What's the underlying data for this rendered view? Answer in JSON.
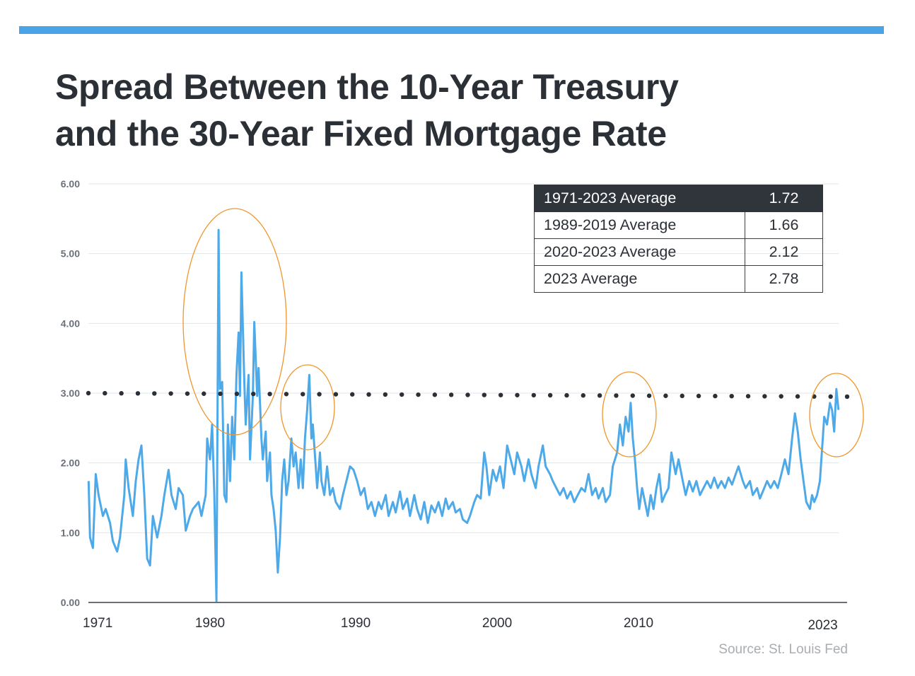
{
  "colors": {
    "accent_bar": "#4aa3e6",
    "series": "#4ea9e8",
    "reference_line": "#2b2f36",
    "annotation_circle": "#f0962e",
    "header_row": "#30353c"
  },
  "title_lines": [
    "Spread Between the 10-Year Treasury",
    "and the 30-Year Fixed Mortgage Rate"
  ],
  "source": "Source: St. Louis Fed",
  "summary_table": [
    {
      "label": "1971-2023 Average",
      "value": "1.72"
    },
    {
      "label": "1989-2019 Average",
      "value": "1.66"
    },
    {
      "label": "2020-2023 Average",
      "value": "2.12"
    },
    {
      "label": "2023 Average",
      "value": "2.78"
    }
  ],
  "chart_data": {
    "type": "line",
    "title": "Spread Between the 10-Year Treasury and the 30-Year Fixed Mortgage Rate",
    "xlabel": "",
    "ylabel": "",
    "xlim": [
      1970.9,
      2024.6
    ],
    "ylim": [
      0,
      6
    ],
    "y_ticks": [
      "0.00",
      "1.00",
      "2.00",
      "3.00",
      "4.00",
      "5.00",
      "6.00"
    ],
    "x_ticks": [
      {
        "label": "1971",
        "year": 1971
      },
      {
        "label": "1980",
        "year": 1980
      },
      {
        "label": "1990",
        "year": 1990.2
      },
      {
        "label": "2000",
        "year": 2000.1
      },
      {
        "label": "2010",
        "year": 2010
      },
      {
        "label": "2023",
        "year": 2022.9
      }
    ],
    "grid": true,
    "reference_line": {
      "start_value": 3.0,
      "end_value": 2.95,
      "style": "dotted"
    },
    "series": [
      {
        "name": "Spread",
        "points": [
          [
            1971.5,
            1.74
          ],
          [
            1971.6,
            0.93
          ],
          [
            1971.8,
            0.78
          ],
          [
            1972.0,
            1.84
          ],
          [
            1972.2,
            1.54
          ],
          [
            1972.5,
            1.24
          ],
          [
            1972.7,
            1.34
          ],
          [
            1973.0,
            1.14
          ],
          [
            1973.2,
            0.88
          ],
          [
            1973.5,
            0.73
          ],
          [
            1973.7,
            0.93
          ],
          [
            1974.0,
            1.54
          ],
          [
            1974.1,
            2.05
          ],
          [
            1974.3,
            1.64
          ],
          [
            1974.6,
            1.24
          ],
          [
            1974.8,
            1.74
          ],
          [
            1975.0,
            2.05
          ],
          [
            1975.2,
            2.25
          ],
          [
            1975.4,
            1.54
          ],
          [
            1975.6,
            0.63
          ],
          [
            1975.8,
            0.53
          ],
          [
            1976.0,
            1.24
          ],
          [
            1976.3,
            0.93
          ],
          [
            1976.6,
            1.24
          ],
          [
            1976.8,
            1.54
          ],
          [
            1977.1,
            1.9
          ],
          [
            1977.3,
            1.54
          ],
          [
            1977.6,
            1.34
          ],
          [
            1977.8,
            1.64
          ],
          [
            1978.1,
            1.54
          ],
          [
            1978.3,
            1.03
          ],
          [
            1978.6,
            1.24
          ],
          [
            1978.8,
            1.34
          ],
          [
            1979.2,
            1.44
          ],
          [
            1979.4,
            1.24
          ],
          [
            1979.7,
            1.54
          ],
          [
            1979.8,
            2.35
          ],
          [
            1980.0,
            2.05
          ],
          [
            1980.15,
            2.55
          ],
          [
            1980.3,
            1.54
          ],
          [
            1980.45,
            0.02
          ],
          [
            1980.6,
            5.34
          ],
          [
            1980.7,
            3.06
          ],
          [
            1980.85,
            3.16
          ],
          [
            1981.0,
            1.54
          ],
          [
            1981.15,
            1.44
          ],
          [
            1981.25,
            2.55
          ],
          [
            1981.4,
            1.74
          ],
          [
            1981.55,
            2.66
          ],
          [
            1981.7,
            2.05
          ],
          [
            1981.85,
            3.26
          ],
          [
            1982.0,
            3.87
          ],
          [
            1982.1,
            2.96
          ],
          [
            1982.2,
            4.73
          ],
          [
            1982.4,
            3.16
          ],
          [
            1982.5,
            2.55
          ],
          [
            1982.7,
            3.26
          ],
          [
            1982.8,
            2.05
          ],
          [
            1983.0,
            2.96
          ],
          [
            1983.1,
            4.02
          ],
          [
            1983.3,
            2.96
          ],
          [
            1983.4,
            3.36
          ],
          [
            1983.6,
            2.35
          ],
          [
            1983.7,
            2.05
          ],
          [
            1983.9,
            2.45
          ],
          [
            1984.0,
            1.74
          ],
          [
            1984.2,
            2.15
          ],
          [
            1984.3,
            1.54
          ],
          [
            1984.45,
            1.34
          ],
          [
            1984.6,
            1.03
          ],
          [
            1984.75,
            0.43
          ],
          [
            1984.9,
            0.93
          ],
          [
            1985.05,
            1.74
          ],
          [
            1985.2,
            2.05
          ],
          [
            1985.35,
            1.54
          ],
          [
            1985.5,
            1.74
          ],
          [
            1985.7,
            2.35
          ],
          [
            1985.85,
            1.95
          ],
          [
            1986.0,
            2.15
          ],
          [
            1986.2,
            1.64
          ],
          [
            1986.35,
            2.05
          ],
          [
            1986.5,
            1.64
          ],
          [
            1986.65,
            2.35
          ],
          [
            1986.8,
            2.76
          ],
          [
            1986.95,
            3.26
          ],
          [
            1987.1,
            2.35
          ],
          [
            1987.2,
            2.55
          ],
          [
            1987.4,
            1.95
          ],
          [
            1987.5,
            1.64
          ],
          [
            1987.7,
            2.15
          ],
          [
            1987.8,
            1.74
          ],
          [
            1988.0,
            1.54
          ],
          [
            1988.2,
            1.95
          ],
          [
            1988.4,
            1.54
          ],
          [
            1988.6,
            1.64
          ],
          [
            1988.8,
            1.44
          ],
          [
            1989.1,
            1.34
          ],
          [
            1989.3,
            1.54
          ],
          [
            1989.55,
            1.74
          ],
          [
            1989.8,
            1.95
          ],
          [
            1990.05,
            1.9
          ],
          [
            1990.3,
            1.74
          ],
          [
            1990.55,
            1.54
          ],
          [
            1990.8,
            1.64
          ],
          [
            1991.05,
            1.34
          ],
          [
            1991.3,
            1.44
          ],
          [
            1991.55,
            1.24
          ],
          [
            1991.8,
            1.44
          ],
          [
            1992.0,
            1.34
          ],
          [
            1992.3,
            1.54
          ],
          [
            1992.5,
            1.24
          ],
          [
            1992.8,
            1.44
          ],
          [
            1993.0,
            1.29
          ],
          [
            1993.3,
            1.59
          ],
          [
            1993.5,
            1.34
          ],
          [
            1993.8,
            1.49
          ],
          [
            1994.0,
            1.24
          ],
          [
            1994.3,
            1.54
          ],
          [
            1994.5,
            1.34
          ],
          [
            1994.75,
            1.19
          ],
          [
            1995.0,
            1.44
          ],
          [
            1995.25,
            1.14
          ],
          [
            1995.5,
            1.39
          ],
          [
            1995.75,
            1.29
          ],
          [
            1996.0,
            1.44
          ],
          [
            1996.25,
            1.24
          ],
          [
            1996.5,
            1.49
          ],
          [
            1996.7,
            1.34
          ],
          [
            1997.0,
            1.44
          ],
          [
            1997.2,
            1.29
          ],
          [
            1997.5,
            1.34
          ],
          [
            1997.7,
            1.19
          ],
          [
            1998.0,
            1.14
          ],
          [
            1998.2,
            1.24
          ],
          [
            1998.5,
            1.44
          ],
          [
            1998.7,
            1.54
          ],
          [
            1998.95,
            1.49
          ],
          [
            1999.2,
            2.15
          ],
          [
            1999.35,
            1.95
          ],
          [
            1999.55,
            1.54
          ],
          [
            1999.8,
            1.9
          ],
          [
            2000.05,
            1.74
          ],
          [
            2000.3,
            1.95
          ],
          [
            2000.55,
            1.64
          ],
          [
            2000.8,
            2.25
          ],
          [
            2001.05,
            2.05
          ],
          [
            2001.3,
            1.84
          ],
          [
            2001.5,
            2.15
          ],
          [
            2001.8,
            1.95
          ],
          [
            2002.0,
            1.74
          ],
          [
            2002.3,
            2.05
          ],
          [
            2002.5,
            1.84
          ],
          [
            2002.8,
            1.64
          ],
          [
            2003.0,
            1.95
          ],
          [
            2003.3,
            2.25
          ],
          [
            2003.5,
            1.95
          ],
          [
            2003.8,
            1.84
          ],
          [
            2004.0,
            1.74
          ],
          [
            2004.25,
            1.64
          ],
          [
            2004.5,
            1.54
          ],
          [
            2004.75,
            1.64
          ],
          [
            2005.0,
            1.49
          ],
          [
            2005.25,
            1.59
          ],
          [
            2005.5,
            1.44
          ],
          [
            2005.75,
            1.54
          ],
          [
            2006.0,
            1.64
          ],
          [
            2006.25,
            1.59
          ],
          [
            2006.5,
            1.84
          ],
          [
            2006.75,
            1.54
          ],
          [
            2007.0,
            1.64
          ],
          [
            2007.2,
            1.49
          ],
          [
            2007.5,
            1.64
          ],
          [
            2007.7,
            1.44
          ],
          [
            2008.0,
            1.54
          ],
          [
            2008.2,
            1.95
          ],
          [
            2008.5,
            2.15
          ],
          [
            2008.7,
            2.55
          ],
          [
            2008.9,
            2.25
          ],
          [
            2009.1,
            2.66
          ],
          [
            2009.3,
            2.45
          ],
          [
            2009.45,
            2.86
          ],
          [
            2009.6,
            2.35
          ],
          [
            2009.75,
            2.05
          ],
          [
            2009.9,
            1.64
          ],
          [
            2010.05,
            1.34
          ],
          [
            2010.25,
            1.64
          ],
          [
            2010.45,
            1.44
          ],
          [
            2010.65,
            1.24
          ],
          [
            2010.85,
            1.54
          ],
          [
            2011.05,
            1.34
          ],
          [
            2011.25,
            1.64
          ],
          [
            2011.45,
            1.84
          ],
          [
            2011.65,
            1.44
          ],
          [
            2011.85,
            1.54
          ],
          [
            2012.1,
            1.64
          ],
          [
            2012.3,
            2.15
          ],
          [
            2012.6,
            1.84
          ],
          [
            2012.8,
            2.05
          ],
          [
            2013.1,
            1.74
          ],
          [
            2013.3,
            1.54
          ],
          [
            2013.55,
            1.74
          ],
          [
            2013.8,
            1.59
          ],
          [
            2014.05,
            1.74
          ],
          [
            2014.3,
            1.54
          ],
          [
            2014.55,
            1.64
          ],
          [
            2014.8,
            1.74
          ],
          [
            2015.05,
            1.64
          ],
          [
            2015.3,
            1.79
          ],
          [
            2015.55,
            1.64
          ],
          [
            2015.8,
            1.74
          ],
          [
            2016.05,
            1.64
          ],
          [
            2016.3,
            1.79
          ],
          [
            2016.55,
            1.69
          ],
          [
            2016.8,
            1.84
          ],
          [
            2017.0,
            1.95
          ],
          [
            2017.3,
            1.74
          ],
          [
            2017.5,
            1.64
          ],
          [
            2017.8,
            1.74
          ],
          [
            2018.0,
            1.54
          ],
          [
            2018.3,
            1.64
          ],
          [
            2018.5,
            1.49
          ],
          [
            2018.8,
            1.64
          ],
          [
            2019.0,
            1.74
          ],
          [
            2019.25,
            1.64
          ],
          [
            2019.5,
            1.74
          ],
          [
            2019.75,
            1.64
          ],
          [
            2020.0,
            1.84
          ],
          [
            2020.25,
            2.05
          ],
          [
            2020.5,
            1.84
          ],
          [
            2020.75,
            2.35
          ],
          [
            2020.95,
            2.71
          ],
          [
            2021.15,
            2.45
          ],
          [
            2021.35,
            2.05
          ],
          [
            2021.55,
            1.74
          ],
          [
            2021.75,
            1.44
          ],
          [
            2022.0,
            1.34
          ],
          [
            2022.15,
            1.54
          ],
          [
            2022.3,
            1.44
          ],
          [
            2022.5,
            1.54
          ],
          [
            2022.7,
            1.74
          ],
          [
            2022.9,
            2.35
          ],
          [
            2023.0,
            2.66
          ],
          [
            2023.2,
            2.55
          ],
          [
            2023.4,
            2.86
          ],
          [
            2023.55,
            2.76
          ],
          [
            2023.7,
            2.45
          ],
          [
            2023.85,
            3.06
          ],
          [
            2024.0,
            2.76
          ]
        ]
      }
    ]
  }
}
